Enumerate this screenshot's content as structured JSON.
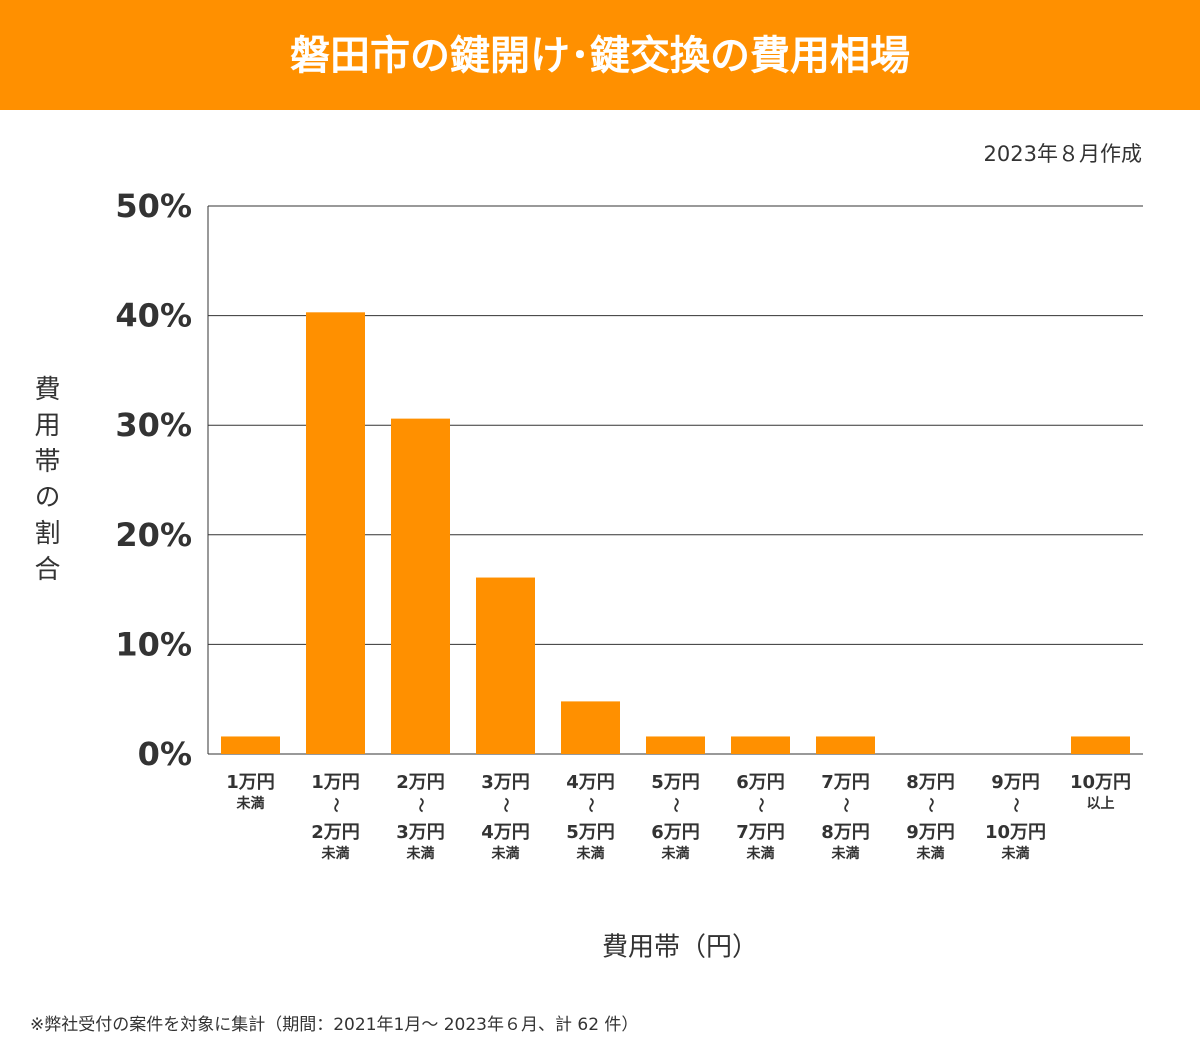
{
  "chart_data": {
    "type": "bar",
    "title": "磐田市の鍵開け･鍵交換の費用相場",
    "subtitle": "2023年８月作成",
    "y_label": "費用帯の割合",
    "x_label": "費用帯（円）",
    "note": "※弊社受付の案件を対象に集計（期間：2021年1月～ 2023年６月、計 62 件）",
    "categories": [
      [
        "1万円",
        "未満"
      ],
      [
        "1万円",
        "〜",
        "2万円",
        "未満"
      ],
      [
        "2万円",
        "〜",
        "3万円",
        "未満"
      ],
      [
        "3万円",
        "〜",
        "4万円",
        "未満"
      ],
      [
        "4万円",
        "〜",
        "5万円",
        "未満"
      ],
      [
        "5万円",
        "〜",
        "6万円",
        "未満"
      ],
      [
        "6万円",
        "〜",
        "7万円",
        "未満"
      ],
      [
        "7万円",
        "〜",
        "8万円",
        "未満"
      ],
      [
        "8万円",
        "〜",
        "9万円",
        "未満"
      ],
      [
        "9万円",
        "〜",
        "10万円",
        "未満"
      ],
      [
        "10万円",
        "以上"
      ]
    ],
    "values": [
      1.6,
      40.3,
      30.6,
      16.1,
      4.8,
      1.6,
      1.6,
      1.6,
      0,
      0,
      1.6
    ],
    "color": "#ff9000",
    "ylim": [
      0,
      50
    ],
    "yticks": [
      {
        "value": 0,
        "label": "0%"
      },
      {
        "value": 10,
        "label": "10%"
      },
      {
        "value": 20,
        "label": "20%"
      },
      {
        "value": 30,
        "label": "30%"
      },
      {
        "value": 40,
        "label": "40%"
      },
      {
        "value": 50,
        "label": "50%"
      }
    ],
    "grid": true
  }
}
